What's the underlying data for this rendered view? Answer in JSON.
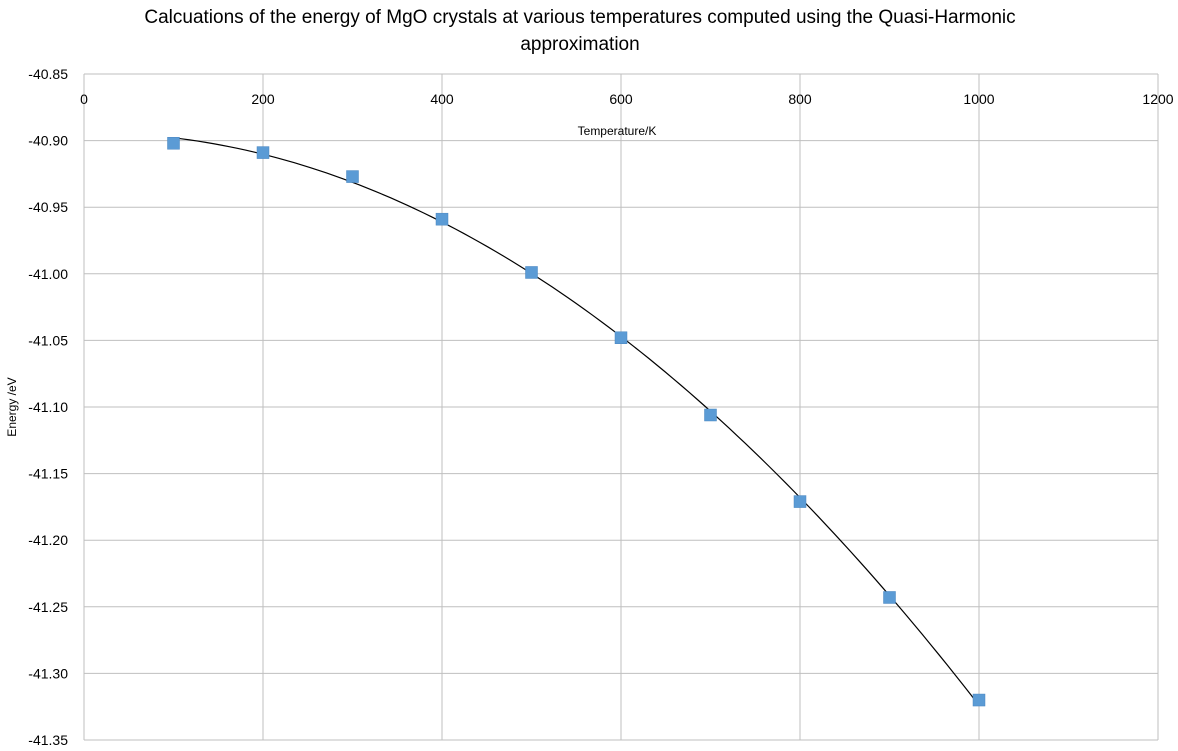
{
  "chart_data": {
    "type": "scatter",
    "title_lines": [
      "Calcuations of the energy of MgO crystals at various temperatures computed using the Quasi-Harmonic",
      "approximation"
    ],
    "xlabel": "Temperature/K",
    "ylabel": "Energy /eV",
    "xlim": [
      0,
      1200
    ],
    "ylim": [
      -41.35,
      -40.85
    ],
    "x_ticks": [
      "0",
      "200",
      "400",
      "600",
      "800",
      "1000",
      "1200"
    ],
    "y_ticks": [
      "-40.85",
      "-40.90",
      "-40.95",
      "-41.00",
      "-41.05",
      "-41.10",
      "-41.15",
      "-41.20",
      "-41.25",
      "-41.30",
      "-41.35"
    ],
    "x_tick_values": [
      0,
      200,
      400,
      600,
      800,
      1000,
      1200
    ],
    "y_tick_values": [
      -40.85,
      -40.9,
      -40.95,
      -41.0,
      -41.05,
      -41.1,
      -41.15,
      -41.2,
      -41.25,
      -41.3,
      -41.35
    ],
    "x_axis_position": "top",
    "grid": true,
    "series": [
      {
        "marker": "square",
        "color": "#5b9bd5",
        "x": [
          100,
          200,
          300,
          400,
          500,
          600,
          700,
          800,
          900,
          1000
        ],
        "y": [
          -40.902,
          -40.909,
          -40.927,
          -40.959,
          -40.999,
          -41.048,
          -41.106,
          -41.171,
          -41.243,
          -41.32
        ]
      }
    ],
    "trendline": {
      "type": "polynomial",
      "color": "#000000",
      "x_range": [
        100,
        1000
      ]
    }
  }
}
